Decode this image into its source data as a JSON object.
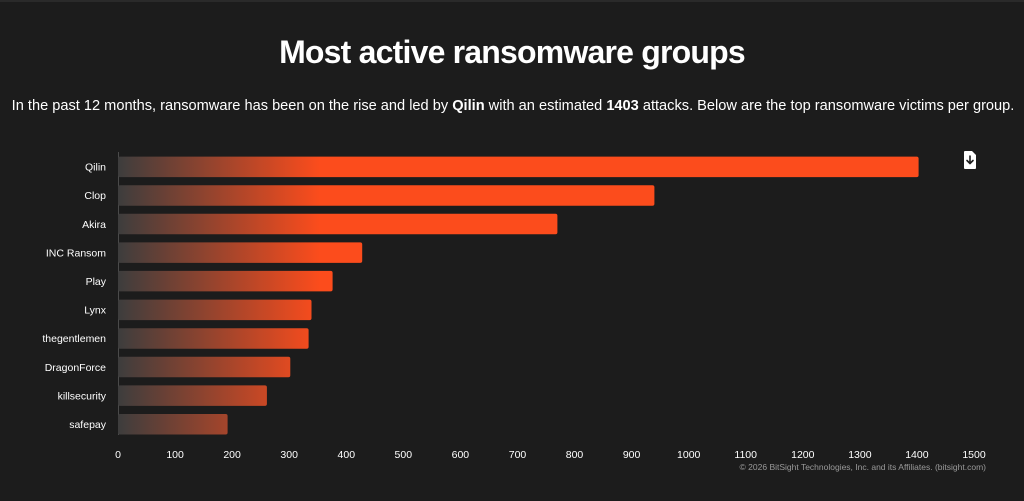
{
  "header": {
    "title": "Most active ransomware groups",
    "subtitle_prefix": "In the past 12 months, ransomware has been on the rise and led by ",
    "subtitle_group": "Qilin",
    "subtitle_middle": " with an estimated ",
    "subtitle_count": "1403",
    "subtitle_suffix": " attacks. Below are the top ransomware victims per group."
  },
  "toolbar": {
    "download_icon": "download-file-icon"
  },
  "credit": "© 2026 BitSight Technologies, Inc. and its Affiliates. (bitsight.com)",
  "colors": {
    "background": "#1c1c1c",
    "bar_start": "#3d3d3d",
    "bar_end": "#fc4c1c",
    "text": "#ffffff"
  },
  "chart_data": {
    "type": "bar",
    "orientation": "horizontal",
    "title": "",
    "xlabel": "",
    "ylabel": "",
    "categories": [
      "Qilin",
      "Clop",
      "Akira",
      "INC Ransom",
      "Play",
      "Lynx",
      "thegentlemen",
      "DragonForce",
      "killsecurity",
      "safepay"
    ],
    "values": [
      1403,
      940,
      770,
      428,
      376,
      339,
      334,
      302,
      261,
      192
    ],
    "xlim": [
      0,
      1500
    ],
    "x_ticks": [
      0,
      100,
      200,
      300,
      400,
      500,
      600,
      700,
      800,
      900,
      1000,
      1100,
      1200,
      1300,
      1400,
      1500
    ],
    "grid": false,
    "legend": "none"
  }
}
